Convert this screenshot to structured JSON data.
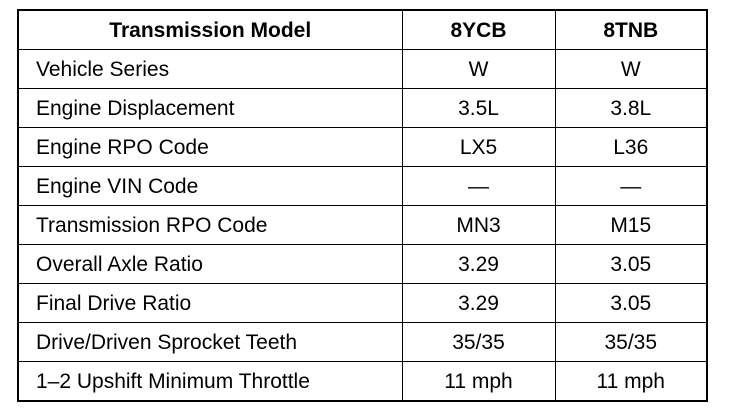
{
  "table": {
    "headers": [
      "Transmission Model",
      "8YCB",
      "8TNB"
    ],
    "rows": [
      {
        "label": "Vehicle Series",
        "values": [
          "W",
          "W"
        ]
      },
      {
        "label": "Engine Displacement",
        "values": [
          "3.5L",
          "3.8L"
        ]
      },
      {
        "label": "Engine RPO Code",
        "values": [
          "LX5",
          "L36"
        ]
      },
      {
        "label": "Engine VIN Code",
        "values": [
          "—",
          "—"
        ]
      },
      {
        "label": "Transmission RPO Code",
        "values": [
          "MN3",
          "M15"
        ]
      },
      {
        "label": "Overall Axle Ratio",
        "values": [
          "3.29",
          "3.05"
        ]
      },
      {
        "label": "Final Drive Ratio",
        "values": [
          "3.29",
          "3.05"
        ]
      },
      {
        "label": "Drive/Driven Sprocket Teeth",
        "values": [
          "35/35",
          "35/35"
        ]
      },
      {
        "label": "1–2 Upshift Minimum Throttle",
        "values": [
          "11 mph",
          "11 mph"
        ]
      }
    ]
  }
}
